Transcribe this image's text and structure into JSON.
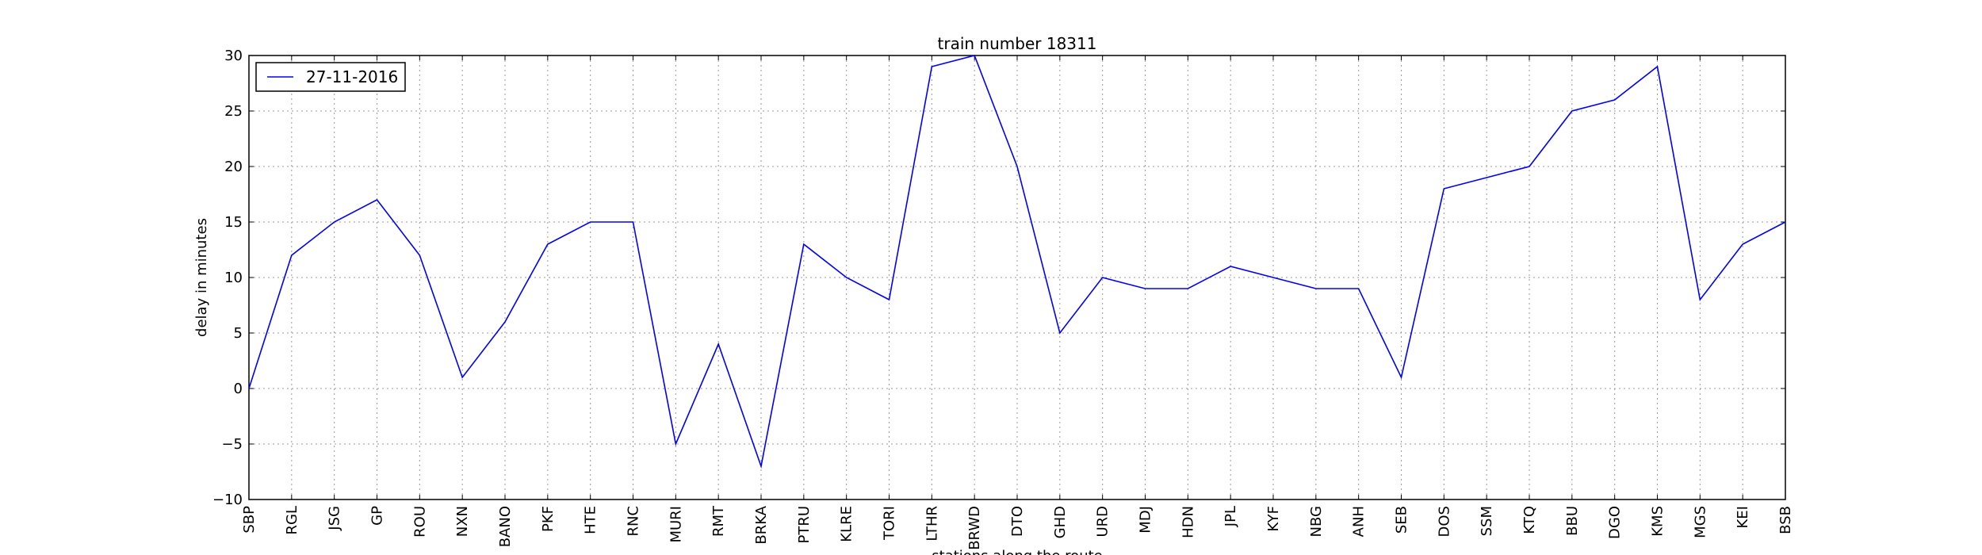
{
  "chart_data": {
    "type": "line",
    "title": "train number 18311",
    "xlabel": "stations along the route",
    "ylabel": "delay in minutes",
    "categories": [
      "SBP",
      "RGL",
      "JSG",
      "GP",
      "ROU",
      "NXN",
      "BANO",
      "PKF",
      "HTE",
      "RNC",
      "MURI",
      "RMT",
      "BRKA",
      "PTRU",
      "KLRE",
      "TORI",
      "LTHR",
      "BRWD",
      "DTO",
      "GHD",
      "URD",
      "MDJ",
      "HDN",
      "JPL",
      "KYF",
      "NBG",
      "ANH",
      "SEB",
      "DOS",
      "SSM",
      "KTQ",
      "BBU",
      "DGO",
      "KMS",
      "MGS",
      "KEI",
      "BSB"
    ],
    "series": [
      {
        "name": "27-11-2016",
        "color": "#0000ff",
        "values": [
          0,
          12,
          15,
          17,
          12,
          1,
          6,
          13,
          15,
          15,
          -5,
          4,
          -7,
          13,
          10,
          8,
          29,
          30,
          20,
          5,
          10,
          9,
          9,
          11,
          10,
          9,
          9,
          1,
          18,
          19,
          20,
          25,
          26,
          29,
          8,
          13,
          15
        ]
      }
    ],
    "ylim": [
      -10,
      30
    ],
    "yticks": [
      -10,
      -5,
      0,
      5,
      10,
      15,
      20,
      25,
      30
    ],
    "ytick_labels": [
      "−10",
      "−5",
      "0",
      "5",
      "10",
      "15",
      "20",
      "25",
      "30"
    ],
    "grid": true,
    "legend_position": "top-left"
  }
}
